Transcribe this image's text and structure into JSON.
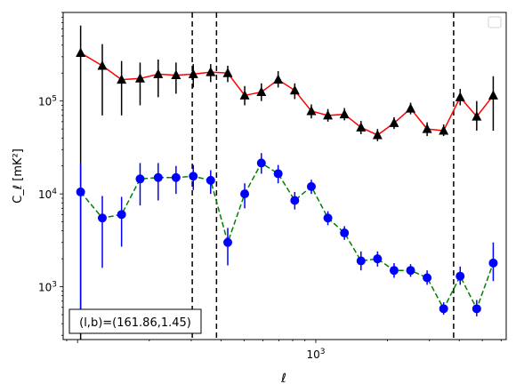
{
  "chart_data": {
    "type": "scatter",
    "xscale": "log",
    "yscale": "log",
    "xlim": [
      87,
      6300
    ],
    "ylim": [
      270,
      900000
    ],
    "xlabel": "ℓ",
    "ylabel": "C_ℓ  [mK²]",
    "xtick_labels": [
      {
        "value": 1000,
        "base": "10",
        "exp": "3"
      }
    ],
    "ytick_labels": [
      {
        "value": 1000,
        "base": "10",
        "exp": "3"
      },
      {
        "value": 10000,
        "base": "10",
        "exp": "4"
      },
      {
        "value": 100000,
        "base": "10",
        "exp": "5"
      }
    ],
    "grid": false,
    "legend": "top-right (empty)",
    "annotation": "(l,b)=(161.86,1.45)",
    "vlines": [
      303,
      383,
      3790
    ],
    "series": [
      {
        "color": "#000000",
        "line_color": "#ff0000",
        "line_style": "solid",
        "marker": "triangle",
        "points": [
          {
            "x": 103,
            "y": 330000,
            "lo": 270,
            "hi": 650000
          },
          {
            "x": 127,
            "y": 240000,
            "lo": 70000,
            "hi": 410000
          },
          {
            "x": 153,
            "y": 170000,
            "lo": 70000,
            "hi": 270000
          },
          {
            "x": 183,
            "y": 175000,
            "lo": 90000,
            "hi": 260000
          },
          {
            "x": 218,
            "y": 195000,
            "lo": 110000,
            "hi": 280000
          },
          {
            "x": 259,
            "y": 190000,
            "lo": 120000,
            "hi": 260000
          },
          {
            "x": 306,
            "y": 195000,
            "lo": 140000,
            "hi": 250000
          },
          {
            "x": 362,
            "y": 205000,
            "lo": 160000,
            "hi": 250000
          },
          {
            "x": 427,
            "y": 200000,
            "lo": 160000,
            "hi": 240000
          },
          {
            "x": 503,
            "y": 115000,
            "lo": 90000,
            "hi": 145000
          },
          {
            "x": 591,
            "y": 125000,
            "lo": 100000,
            "hi": 155000
          },
          {
            "x": 695,
            "y": 170000,
            "lo": 140000,
            "hi": 210000
          },
          {
            "x": 816,
            "y": 130000,
            "lo": 105000,
            "hi": 155000
          },
          {
            "x": 958,
            "y": 78000,
            "lo": 65000,
            "hi": 92000
          },
          {
            "x": 1124,
            "y": 70000,
            "lo": 60000,
            "hi": 82000
          },
          {
            "x": 1319,
            "y": 72000,
            "lo": 62000,
            "hi": 84000
          },
          {
            "x": 1548,
            "y": 52000,
            "lo": 44000,
            "hi": 61000
          },
          {
            "x": 1816,
            "y": 43000,
            "lo": 37000,
            "hi": 50000
          },
          {
            "x": 2131,
            "y": 58000,
            "lo": 50000,
            "hi": 67000
          },
          {
            "x": 2500,
            "y": 83000,
            "lo": 72000,
            "hi": 96000
          },
          {
            "x": 2933,
            "y": 50000,
            "lo": 42000,
            "hi": 59000
          },
          {
            "x": 3441,
            "y": 48000,
            "lo": 42000,
            "hi": 56000
          },
          {
            "x": 4037,
            "y": 110000,
            "lo": 90000,
            "hi": 135000
          },
          {
            "x": 4737,
            "y": 68000,
            "lo": 48000,
            "hi": 100000
          },
          {
            "x": 5558,
            "y": 115000,
            "lo": 48000,
            "hi": 185000
          }
        ]
      },
      {
        "color": "#0000ff",
        "line_color": "#008000",
        "line_style": "dashed",
        "marker": "circle",
        "points": [
          {
            "x": 103,
            "y": 10500,
            "lo": 450,
            "hi": 21000
          },
          {
            "x": 127,
            "y": 5500,
            "lo": 1600,
            "hi": 9500
          },
          {
            "x": 153,
            "y": 6000,
            "lo": 2700,
            "hi": 9300
          },
          {
            "x": 183,
            "y": 14500,
            "lo": 7500,
            "hi": 21500
          },
          {
            "x": 218,
            "y": 15000,
            "lo": 8500,
            "hi": 21500
          },
          {
            "x": 259,
            "y": 15000,
            "lo": 10000,
            "hi": 20000
          },
          {
            "x": 306,
            "y": 15500,
            "lo": 11000,
            "hi": 20500
          },
          {
            "x": 362,
            "y": 14000,
            "lo": 10000,
            "hi": 18000
          },
          {
            "x": 427,
            "y": 3000,
            "lo": 1700,
            "hi": 4300
          },
          {
            "x": 503,
            "y": 10000,
            "lo": 7000,
            "hi": 13000
          },
          {
            "x": 591,
            "y": 21500,
            "lo": 16500,
            "hi": 27500
          },
          {
            "x": 695,
            "y": 16500,
            "lo": 13000,
            "hi": 20500
          },
          {
            "x": 816,
            "y": 8500,
            "lo": 6800,
            "hi": 10500
          },
          {
            "x": 958,
            "y": 12000,
            "lo": 10000,
            "hi": 14200
          },
          {
            "x": 1124,
            "y": 5500,
            "lo": 4600,
            "hi": 6500
          },
          {
            "x": 1319,
            "y": 3800,
            "lo": 3200,
            "hi": 4500
          },
          {
            "x": 1548,
            "y": 1900,
            "lo": 1500,
            "hi": 2400
          },
          {
            "x": 1816,
            "y": 2000,
            "lo": 1650,
            "hi": 2400
          },
          {
            "x": 2131,
            "y": 1500,
            "lo": 1250,
            "hi": 1800
          },
          {
            "x": 2500,
            "y": 1500,
            "lo": 1280,
            "hi": 1750
          },
          {
            "x": 2933,
            "y": 1250,
            "lo": 1050,
            "hi": 1500
          },
          {
            "x": 3441,
            "y": 580,
            "lo": 500,
            "hi": 680
          },
          {
            "x": 4037,
            "y": 1300,
            "lo": 1050,
            "hi": 1650
          },
          {
            "x": 4737,
            "y": 580,
            "lo": 480,
            "hi": 720
          },
          {
            "x": 5558,
            "y": 1800,
            "lo": 1150,
            "hi": 3000
          }
        ]
      }
    ]
  }
}
